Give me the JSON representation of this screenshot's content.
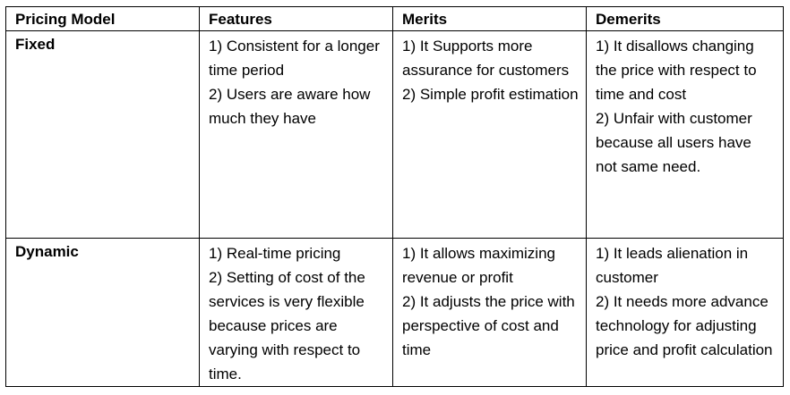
{
  "table": {
    "headers": [
      "Pricing Model",
      "Features",
      "Merits",
      "Demerits"
    ],
    "rows": [
      {
        "model": "Fixed",
        "features": "1) Consistent for a longer time period\n2) Users are aware how much they have",
        "merits": "1) It Supports more assurance for customers\n2) Simple profit estimation",
        "demerits": "1) It disallows changing the price with respect to time and cost\n2) Unfair with customer because all users have not same need."
      },
      {
        "model": "Dynamic",
        "features": "1) Real-time pricing\n2) Setting of cost of the services is very flexible because prices are varying with respect to time.",
        "merits": "1) It allows maximizing revenue or profit\n2) It adjusts the price with perspective of cost and time",
        "demerits": "1) It leads alienation in customer\n2) It needs more advance technology for adjusting price and profit calculation"
      }
    ]
  }
}
